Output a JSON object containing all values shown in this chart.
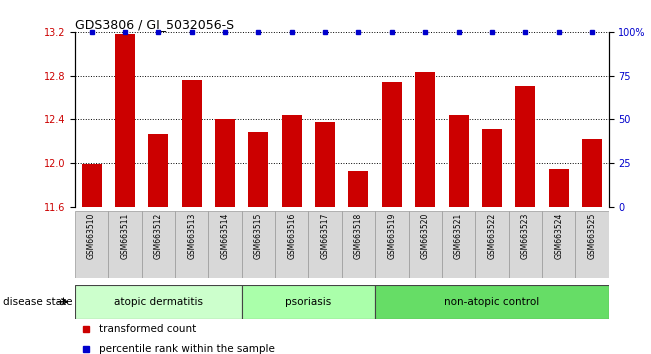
{
  "title": "GDS3806 / GI_5032056-S",
  "samples": [
    "GSM663510",
    "GSM663511",
    "GSM663512",
    "GSM663513",
    "GSM663514",
    "GSM663515",
    "GSM663516",
    "GSM663517",
    "GSM663518",
    "GSM663519",
    "GSM663520",
    "GSM663521",
    "GSM663522",
    "GSM663523",
    "GSM663524",
    "GSM663525"
  ],
  "transformed_counts": [
    11.99,
    13.18,
    12.27,
    12.76,
    12.4,
    12.29,
    12.44,
    12.38,
    11.93,
    12.74,
    12.83,
    12.44,
    12.31,
    12.71,
    11.95,
    12.22
  ],
  "ylim_left": [
    11.6,
    13.2
  ],
  "ylim_right": [
    0,
    100
  ],
  "yticks_left": [
    11.6,
    12.0,
    12.4,
    12.8,
    13.2
  ],
  "yticks_right": [
    0,
    25,
    50,
    75,
    100
  ],
  "bar_color": "#cc0000",
  "percentile_color": "#0000cc",
  "groups": [
    {
      "label": "atopic dermatitis",
      "start": 0,
      "end": 4
    },
    {
      "label": "psoriasis",
      "start": 5,
      "end": 8
    },
    {
      "label": "non-atopic control",
      "start": 9,
      "end": 15
    }
  ],
  "group_colors": [
    "#ccffcc",
    "#aaffaa",
    "#66dd66"
  ],
  "disease_state_label": "disease state",
  "legend_transformed": "transformed count",
  "legend_percentile": "percentile rank within the sample"
}
